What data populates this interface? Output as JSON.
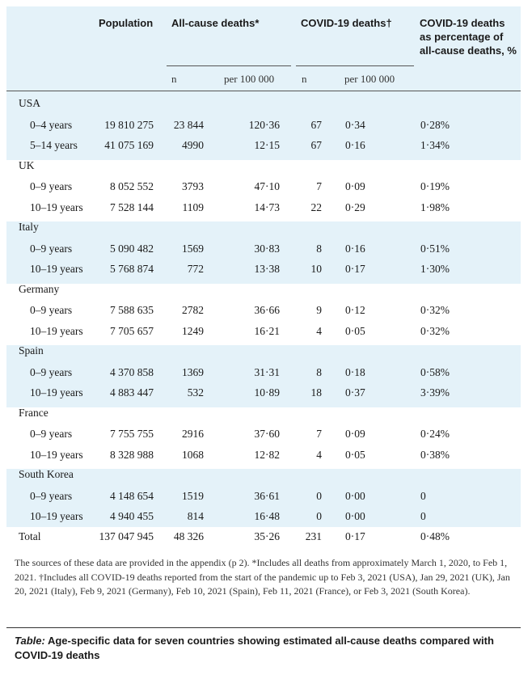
{
  "header": {
    "population": "Population",
    "all_cause": "All-cause deaths*",
    "covid": "COVID-19 deaths†",
    "pct": [
      "COVID-19 deaths",
      "as percentage of",
      "all-cause deaths, %"
    ],
    "n": "n",
    "per100k": "per 100 000"
  },
  "countries": [
    {
      "name": "USA",
      "rows": [
        {
          "age": "0–4 years",
          "population": "19 810 275",
          "all_n": "23 844",
          "all_rate": "120·36",
          "covid_n": "67",
          "covid_rate": "0·34",
          "pct": "0·28%"
        },
        {
          "age": "5–14 years",
          "population": "41 075 169",
          "all_n": "4990",
          "all_rate": "12·15",
          "covid_n": "67",
          "covid_rate": "0·16",
          "pct": "1·34%"
        }
      ]
    },
    {
      "name": "UK",
      "rows": [
        {
          "age": "0–9 years",
          "population": "8 052 552",
          "all_n": "3793",
          "all_rate": "47·10",
          "covid_n": "7",
          "covid_rate": "0·09",
          "pct": "0·19%"
        },
        {
          "age": "10–19 years",
          "population": "7 528 144",
          "all_n": "1109",
          "all_rate": "14·73",
          "covid_n": "22",
          "covid_rate": "0·29",
          "pct": "1·98%"
        }
      ]
    },
    {
      "name": "Italy",
      "rows": [
        {
          "age": "0–9 years",
          "population": "5 090 482",
          "all_n": "1569",
          "all_rate": "30·83",
          "covid_n": "8",
          "covid_rate": "0·16",
          "pct": "0·51%"
        },
        {
          "age": "10–19 years",
          "population": "5 768 874",
          "all_n": "772",
          "all_rate": "13·38",
          "covid_n": "10",
          "covid_rate": "0·17",
          "pct": "1·30%"
        }
      ]
    },
    {
      "name": "Germany",
      "rows": [
        {
          "age": "0–9 years",
          "population": "7 588 635",
          "all_n": "2782",
          "all_rate": "36·66",
          "covid_n": "9",
          "covid_rate": "0·12",
          "pct": "0·32%"
        },
        {
          "age": "10–19 years",
          "population": "7 705 657",
          "all_n": "1249",
          "all_rate": "16·21",
          "covid_n": "4",
          "covid_rate": "0·05",
          "pct": "0·32%"
        }
      ]
    },
    {
      "name": "Spain",
      "rows": [
        {
          "age": "0–9 years",
          "population": "4 370 858",
          "all_n": "1369",
          "all_rate": "31·31",
          "covid_n": "8",
          "covid_rate": "0·18",
          "pct": "0·58%"
        },
        {
          "age": "10–19 years",
          "population": "4 883 447",
          "all_n": "532",
          "all_rate": "10·89",
          "covid_n": "18",
          "covid_rate": "0·37",
          "pct": "3·39%"
        }
      ]
    },
    {
      "name": "France",
      "rows": [
        {
          "age": "0–9 years",
          "population": "7 755 755",
          "all_n": "2916",
          "all_rate": "37·60",
          "covid_n": "7",
          "covid_rate": "0·09",
          "pct": "0·24%"
        },
        {
          "age": "10–19 years",
          "population": "8 328 988",
          "all_n": "1068",
          "all_rate": "12·82",
          "covid_n": "4",
          "covid_rate": "0·05",
          "pct": "0·38%"
        }
      ]
    },
    {
      "name": "South Korea",
      "rows": [
        {
          "age": "0–9 years",
          "population": "4 148 654",
          "all_n": "1519",
          "all_rate": "36·61",
          "covid_n": "0",
          "covid_rate": "0·00",
          "pct": "0"
        },
        {
          "age": "10–19 years",
          "population": "4 940 455",
          "all_n": "814",
          "all_rate": "16·48",
          "covid_n": "0",
          "covid_rate": "0·00",
          "pct": "0"
        }
      ]
    }
  ],
  "total": {
    "label": "Total",
    "population": "137 047 945",
    "all_n": "48 326",
    "all_rate": "35·26",
    "covid_n": "231",
    "covid_rate": "0·17",
    "pct": "0·48%"
  },
  "footnote": "The sources of these data are provided in the appendix (p 2). *Includes all deaths from approximately March 1, 2020, to Feb 1, 2021. †Includes all COVID-19 deaths reported from the start of the pandemic up to Feb 3, 2021 (USA), Jan 29, 2021 (UK), Jan 20, 2021 (Italy), Feb 9, 2021 (Germany), Feb 10, 2021 (Spain), Feb 11, 2021 (France), or Feb 3, 2021 (South Korea).",
  "caption": {
    "label": "Table:",
    "text": "Age-specific data for seven countries showing estimated all-cause deaths compared with COVID-19 deaths"
  }
}
